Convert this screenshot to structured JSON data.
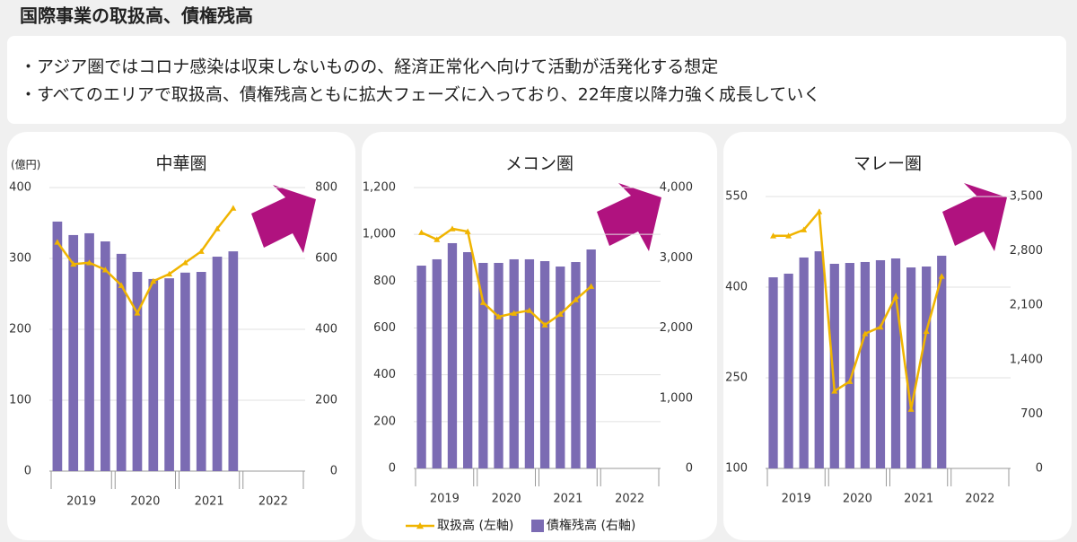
{
  "header": {
    "title": "国際事業の取扱高、債権残高",
    "bullets": [
      "・アジア圏ではコロナ感染は収束しないものの、経済正常化へ向けて活動が活発化する想定",
      "・すべてのエリアで取扱高、債権残高ともに拡大フェーズに入っており、22年度以降力強く成長していく"
    ]
  },
  "legend": [
    {
      "name": "取扱高 (左軸)",
      "color": "#f0b400"
    },
    {
      "name": "債権残高 (右軸)",
      "color": "#7b6bb3"
    }
  ],
  "chart_data": [
    {
      "type": "bar_line",
      "title": "中華圏",
      "y_label": "(億円)",
      "categories": [
        null,
        null,
        null,
        null,
        null,
        null,
        null,
        null,
        null,
        null,
        null,
        null,
        null,
        null,
        null,
        null
      ],
      "groups": [
        "2019",
        "2020",
        "2021",
        "2022"
      ],
      "ylim": [
        0,
        400
      ],
      "yticks": [
        0,
        100,
        200,
        300,
        400
      ],
      "y2lim": [
        0,
        800
      ],
      "y2ticks": [
        0,
        200,
        400,
        600,
        800
      ],
      "grid": true,
      "series": [
        {
          "type": "line",
          "color": "#f0b400",
          "values": [
            323,
            292,
            294,
            284,
            262,
            223,
            268,
            278,
            294,
            310,
            342,
            371,
            null,
            null,
            null,
            null
          ]
        },
        {
          "type": "bar",
          "axis": "y2",
          "color": "#7b6bb3",
          "values": [
            704,
            666,
            671,
            648,
            613,
            562,
            542,
            544,
            560,
            562,
            605,
            620,
            null,
            null,
            null,
            null
          ]
        }
      ]
    },
    {
      "type": "bar_line",
      "title": "メコン圏",
      "categories": [
        null,
        null,
        null,
        null,
        null,
        null,
        null,
        null,
        null,
        null,
        null,
        null,
        null,
        null,
        null,
        null
      ],
      "groups": [
        "2019",
        "2020",
        "2021",
        "2022"
      ],
      "ylim": [
        0,
        1200
      ],
      "yticks": [
        0,
        200,
        400,
        600,
        800,
        {
          "value": 1000,
          "label": "1,000"
        },
        {
          "value": 1200,
          "label": "1,200"
        }
      ],
      "y2lim": [
        0,
        4000
      ],
      "y2ticks": [
        0,
        {
          "value": 1000,
          "label": "1,000"
        },
        {
          "value": 2000,
          "label": "2,000"
        },
        {
          "value": 3000,
          "label": "3,000"
        },
        {
          "value": 4000,
          "label": "4,000"
        }
      ],
      "grid": true,
      "series": [
        {
          "type": "line",
          "color": "#f0b400",
          "values": [
            1008,
            978,
            1024,
            1012,
            709,
            648,
            663,
            675,
            613,
            659,
            721,
            778,
            null,
            null,
            null,
            null
          ]
        },
        {
          "type": "bar",
          "axis": "y2",
          "color": "#7b6bb3",
          "values": [
            2888,
            2978,
            3208,
            3080,
            2927,
            2927,
            2978,
            2978,
            2952,
            2875,
            2939,
            3118,
            null,
            null,
            null,
            null
          ]
        }
      ]
    },
    {
      "type": "bar_line",
      "title": "マレー圏",
      "categories": [
        null,
        null,
        null,
        null,
        null,
        null,
        null,
        null,
        null,
        null,
        null,
        null,
        null,
        null,
        null,
        null
      ],
      "groups": [
        "2019",
        "2020",
        "2021",
        "2022"
      ],
      "ylim": [
        100,
        550
      ],
      "yticks": [
        100,
        250,
        400,
        550
      ],
      "y2lim": [
        0,
        3500
      ],
      "y2ticks": [
        0,
        700,
        {
          "value": 1400,
          "label": "1,400"
        },
        {
          "value": 2100,
          "label": "2,100"
        },
        {
          "value": 2800,
          "label": "2,800"
        },
        {
          "value": 3500,
          "label": "3,500"
        }
      ],
      "grid": true,
      "series": [
        {
          "type": "line",
          "color": "#f0b400",
          "values": [
            485,
            485,
            495,
            525,
            228,
            244,
            323,
            334,
            385,
            198,
            327,
            418,
            null,
            null,
            null,
            null
          ]
        },
        {
          "type": "bar",
          "axis": "y2",
          "color": "#7b6bb3",
          "values": [
            2460,
            2507,
            2715,
            2795,
            2634,
            2645,
            2657,
            2680,
            2703,
            2587,
            2599,
            2738,
            null,
            null,
            null,
            null
          ]
        }
      ]
    }
  ]
}
